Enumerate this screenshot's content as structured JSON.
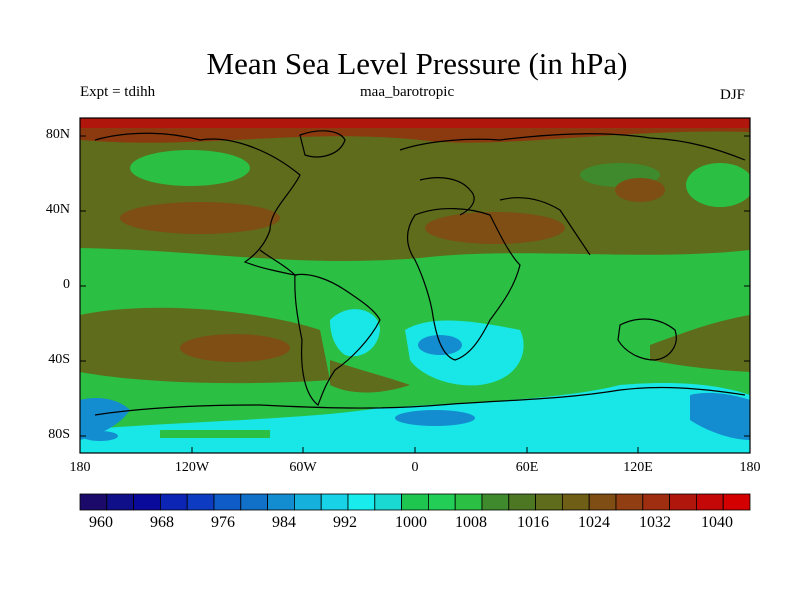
{
  "title": "Mean Sea Level Pressure (in hPa)",
  "experiment_label": "Expt = tdihh",
  "subtitle": "maa_barotropic",
  "season": "DJF",
  "axes": {
    "lat_ticks": [
      "80N",
      "40N",
      "0",
      "40S",
      "80S"
    ],
    "lon_ticks": [
      "180",
      "120W",
      "60W",
      "0",
      "60E",
      "120E",
      "180"
    ]
  },
  "colorbar": {
    "labels": [
      "960",
      "968",
      "976",
      "984",
      "992",
      "1000",
      "1008",
      "1016",
      "1024",
      "1032",
      "1040"
    ],
    "colors": [
      "#1c0a6a",
      "#0f0f8a",
      "#0a0a9a",
      "#0c25b4",
      "#0d3cc2",
      "#0f5cc8",
      "#1170c8",
      "#148cd0",
      "#16b0dc",
      "#18d2e8",
      "#19ecec",
      "#1ad8d2",
      "#1ec650",
      "#22ce55",
      "#2bbf44",
      "#3f8a2c",
      "#4d7722",
      "#5e6c1c",
      "#6e5e16",
      "#7f4e14",
      "#903e12",
      "#9f2e10",
      "#b1160c",
      "#c40808",
      "#d40000"
    ]
  },
  "colors": {
    "high_pressure": "#8b3a10",
    "mid_high": "#5e6c1c",
    "mid": "#2bbf44",
    "low": "#19e6e6",
    "lowest": "#148cd0"
  }
}
